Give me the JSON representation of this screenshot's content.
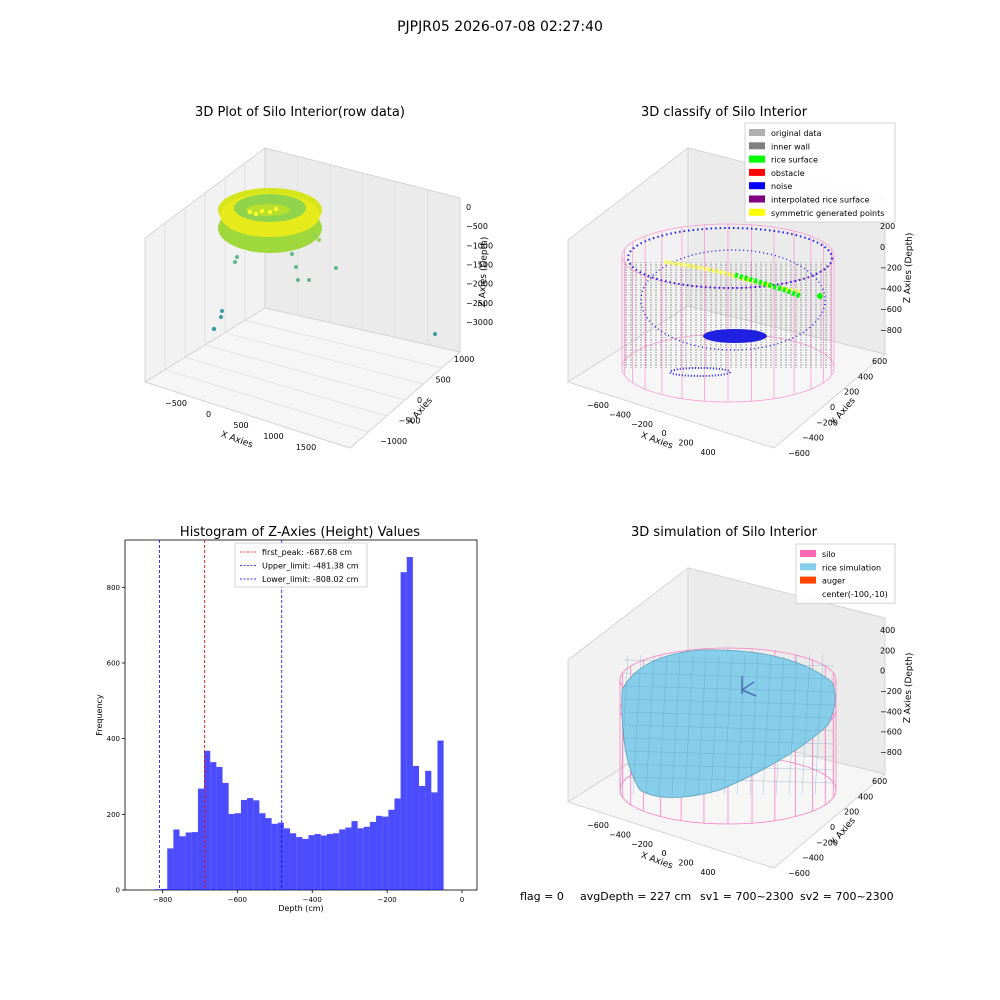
{
  "figure": {
    "title": "PJPJR05 2026-07-08 02:27:40",
    "footer": {
      "flag": "flag = 0",
      "avg": "avgDepth = 227 cm",
      "sv1": "sv1 = 700~2300",
      "sv2": "sv2 = 700~2300"
    }
  },
  "panels": {
    "raw": {
      "title": "3D Plot of Silo Interior(row data)",
      "xlabel": "X Axies",
      "ylabel": "Y Axies",
      "zlabel": "Z Axies (Depth)",
      "xticks": [
        "−500",
        "0",
        "500",
        "1000",
        "1500"
      ],
      "yticks": [
        "−1000",
        "−500",
        "0",
        "500",
        "1000"
      ],
      "zticks": [
        "0",
        "−500",
        "−1000",
        "−1500",
        "−2000",
        "−2500",
        "−3000"
      ]
    },
    "classify": {
      "title": "3D classify of Silo Interior",
      "xlabel": "X Axies",
      "ylabel": "Y Axies",
      "zlabel": "Z Axies (Depth)",
      "xticks": [
        "−600",
        "−400",
        "−200",
        "0",
        "200",
        "400"
      ],
      "yticks": [
        "−600",
        "−400",
        "−200",
        "0",
        "200",
        "400",
        "600"
      ],
      "zticks": [
        "200",
        "0",
        "−200",
        "−400",
        "−600",
        "−800"
      ],
      "legend": [
        {
          "label": "original data",
          "color": "#b0b0b0"
        },
        {
          "label": "inner wall",
          "color": "#808080"
        },
        {
          "label": "rice surface",
          "color": "#00ff00"
        },
        {
          "label": "obstacle",
          "color": "#ff0000"
        },
        {
          "label": "noise",
          "color": "#0000ff"
        },
        {
          "label": "interpolated rice surface",
          "color": "#800080"
        },
        {
          "label": "symmetric generated points",
          "color": "#ffff00"
        }
      ]
    },
    "simulation": {
      "title": "3D simulation of Silo Interior",
      "xlabel": "X Axies",
      "ylabel": "Y Axies",
      "zlabel": "Z Axies (Depth)",
      "xticks": [
        "−600",
        "−400",
        "−200",
        "0",
        "200",
        "400"
      ],
      "yticks": [
        "−600",
        "−400",
        "−200",
        "0",
        "200",
        "400",
        "600"
      ],
      "zticks": [
        "400",
        "200",
        "0",
        "−200",
        "−400",
        "−600",
        "−800"
      ],
      "legend": [
        {
          "label": "silo",
          "color": "#ff69b4"
        },
        {
          "label": "rice simulation",
          "color": "#87ceeb"
        },
        {
          "label": "auger",
          "color": "#ff4500"
        },
        {
          "label": "center(-100,-10)",
          "color": ""
        }
      ]
    }
  },
  "chart_data": {
    "type": "bar",
    "title": "Histogram of Z-Axies (Height) Values",
    "xlabel": "Depth (cm)",
    "ylabel": "Frequency",
    "xlim": [
      -900,
      40
    ],
    "ylim": [
      0,
      925
    ],
    "xticks": [
      -800,
      -600,
      -400,
      -200,
      0
    ],
    "yticks": [
      0,
      200,
      400,
      600,
      800
    ],
    "bin_start": -820,
    "bin_width": 16.4,
    "values": [
      2,
      3,
      110,
      160,
      142,
      152,
      153,
      268,
      368,
      338,
      325,
      283,
      201,
      203,
      238,
      243,
      237,
      203,
      190,
      175,
      178,
      163,
      150,
      140,
      135,
      145,
      148,
      144,
      148,
      150,
      160,
      165,
      182,
      163,
      167,
      180,
      196,
      194,
      212,
      242,
      840,
      880,
      328,
      275,
      315,
      258,
      395
    ],
    "bar_color": "#0000ff",
    "lines": [
      {
        "label": "first_peak: -687.68 cm",
        "x": -687.68,
        "color": "#ff0000"
      },
      {
        "label": "Upper_limit: -481.38 cm",
        "x": -481.38,
        "color": "#0000ff"
      },
      {
        "label": "Lower_limit: -808.02 cm",
        "x": -808.02,
        "color": "#0000ff"
      }
    ],
    "legend_position": "top-center"
  }
}
